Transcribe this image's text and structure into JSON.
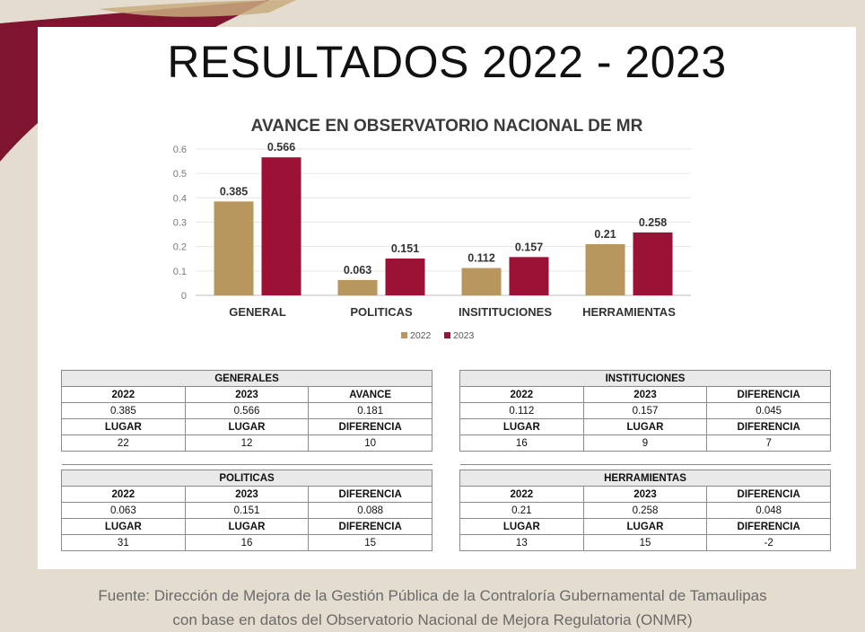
{
  "slide": {
    "title": "RESULTADOS 2022 - 2023",
    "source_line1": "Fuente: Dirección de Mejora de la Gestión Pública de la Contraloría Gubernamental de Tamaulipas",
    "source_line2": "con base en datos del Observatorio Nacional de Mejora Regulatoria (ONMR)"
  },
  "chart_data": {
    "type": "bar",
    "title": "AVANCE EN OBSERVATORIO NACIONAL DE MR",
    "categories": [
      "GENERAL",
      "POLITICAS",
      "INSITITUCIONES",
      "HERRAMIENTAS"
    ],
    "series": [
      {
        "name": "2022",
        "values": [
          0.385,
          0.063,
          0.112,
          0.21
        ],
        "color": "#b8975f"
      },
      {
        "name": "2023",
        "values": [
          0.566,
          0.151,
          0.157,
          0.258
        ],
        "color": "#9c1236"
      }
    ],
    "data_labels": [
      [
        "0.385",
        "0.063",
        "0.112",
        "0.21"
      ],
      [
        "0.566",
        "0.151",
        "0.157",
        "0.258"
      ]
    ],
    "ylim": [
      0,
      0.6
    ],
    "yticks": [
      "0",
      "0.1",
      "0.2",
      "0.3",
      "0.4",
      "0.5",
      "0.6"
    ],
    "grid": true,
    "legend_position": "bottom"
  },
  "tables": [
    {
      "title": "GENERALES",
      "cols": [
        "2022",
        "2023",
        "AVANCE"
      ],
      "vals": [
        "0.385",
        "0.566",
        "0.181"
      ],
      "cols2": [
        "LUGAR",
        "LUGAR",
        "DIFERENCIA"
      ],
      "vals2": [
        "22",
        "12",
        "10"
      ]
    },
    {
      "title": "INSTITUCIONES",
      "cols": [
        "2022",
        "2023",
        "DIFERENCIA"
      ],
      "vals": [
        "0.112",
        "0.157",
        "0.045"
      ],
      "cols2": [
        "LUGAR",
        "LUGAR",
        "DIFERENCIA"
      ],
      "vals2": [
        "16",
        "9",
        "7"
      ]
    },
    {
      "title": "POLITICAS",
      "cols": [
        "2022",
        "2023",
        "DIFERENCIA"
      ],
      "vals": [
        "0.063",
        "0.151",
        "0.088"
      ],
      "cols2": [
        "LUGAR",
        "LUGAR",
        "DIFERENCIA"
      ],
      "vals2": [
        "31",
        "16",
        "15"
      ]
    },
    {
      "title": "HERRAMIENTAS",
      "cols": [
        "2022",
        "2023",
        "DIFERENCIA"
      ],
      "vals": [
        "0.21",
        "0.258",
        "0.048"
      ],
      "cols2": [
        "LUGAR",
        "LUGAR",
        "DIFERENCIA"
      ],
      "vals2": [
        "13",
        "15",
        "-2"
      ]
    }
  ]
}
